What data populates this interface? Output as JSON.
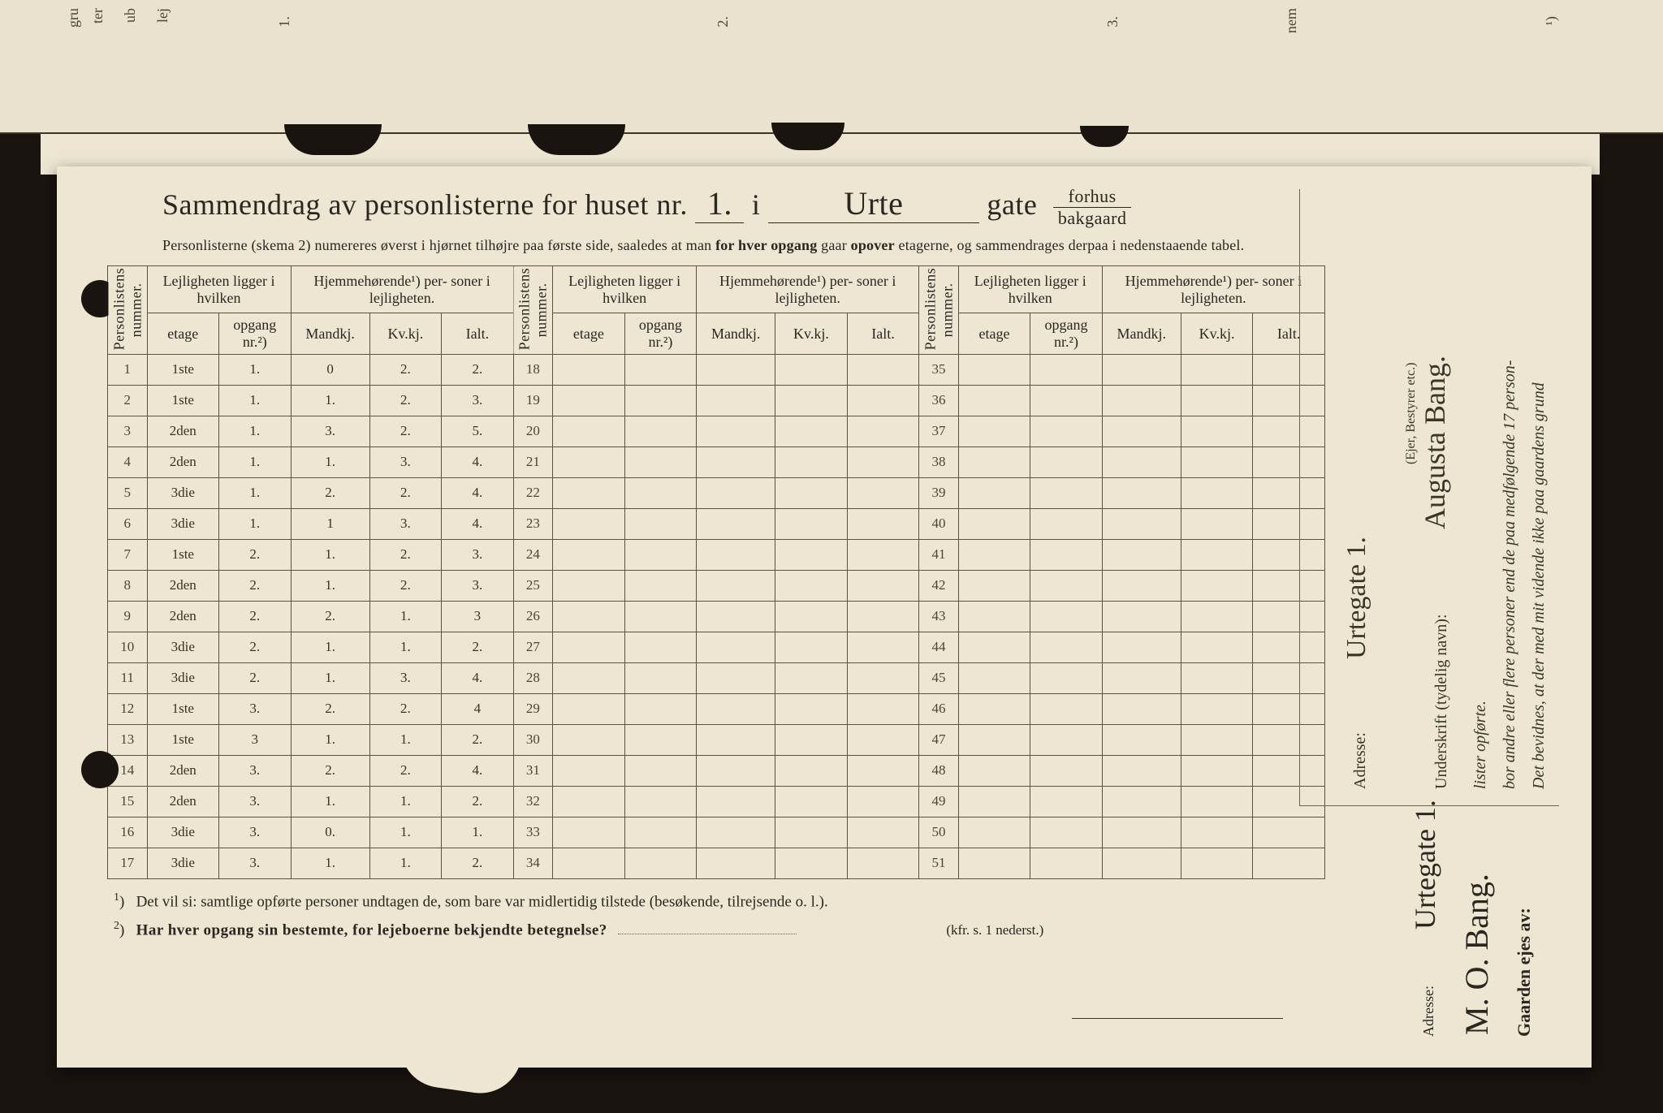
{
  "header": {
    "prefix": "Sammendrag av personlisterne for huset nr.",
    "house_nr": "1.",
    "i": "i",
    "street_hand": "Urte",
    "gate": "gate",
    "frac_top": "forhus",
    "frac_bot": "bakgaard",
    "subtitle_a": "Personlisterne (skema 2) numereres øverst i hjørnet tilhøjre paa første side, saaledes at man ",
    "subtitle_b": "for hver opgang",
    "subtitle_c": " gaar ",
    "subtitle_d": "opover",
    "subtitle_e": " etagerne, og sammendrages derpaa i nedenstaaende tabel."
  },
  "table_headers": {
    "personlistens": "Personlistens\nnummer.",
    "lejl": "Lejligheten\nligger i hvilken",
    "hjemme": "Hjemmehørende¹) per-\nsoner i lejligheten.",
    "etage": "etage",
    "opgang": "opgang\nnr.²)",
    "mandkj": "Mandkj.",
    "kvkj": "Kv.kj.",
    "ialt": "Ialt."
  },
  "rows": [
    {
      "n": "1",
      "etage": "1ste",
      "opg": "1.",
      "m": "0",
      "k": "2.",
      "i": "2."
    },
    {
      "n": "2",
      "etage": "1ste",
      "opg": "1.",
      "m": "1.",
      "k": "2.",
      "i": "3."
    },
    {
      "n": "3",
      "etage": "2den",
      "opg": "1.",
      "m": "3.",
      "k": "2.",
      "i": "5."
    },
    {
      "n": "4",
      "etage": "2den",
      "opg": "1.",
      "m": "1.",
      "k": "3.",
      "i": "4."
    },
    {
      "n": "5",
      "etage": "3die",
      "opg": "1.",
      "m": "2.",
      "k": "2.",
      "i": "4."
    },
    {
      "n": "6",
      "etage": "3die",
      "opg": "1.",
      "m": "1",
      "k": "3.",
      "i": "4."
    },
    {
      "n": "7",
      "etage": "1ste",
      "opg": "2.",
      "m": "1.",
      "k": "2.",
      "i": "3."
    },
    {
      "n": "8",
      "etage": "2den",
      "opg": "2.",
      "m": "1.",
      "k": "2.",
      "i": "3."
    },
    {
      "n": "9",
      "etage": "2den",
      "opg": "2.",
      "m": "2.",
      "k": "1.",
      "i": "3"
    },
    {
      "n": "10",
      "etage": "3die",
      "opg": "2.",
      "m": "1.",
      "k": "1.",
      "i": "2."
    },
    {
      "n": "11",
      "etage": "3die",
      "opg": "2.",
      "m": "1.",
      "k": "3.",
      "i": "4."
    },
    {
      "n": "12",
      "etage": "1ste",
      "opg": "3.",
      "m": "2.",
      "k": "2.",
      "i": "4"
    },
    {
      "n": "13",
      "etage": "1ste",
      "opg": "3",
      "m": "1.",
      "k": "1.",
      "i": "2."
    },
    {
      "n": "14",
      "etage": "2den",
      "opg": "3.",
      "m": "2.",
      "k": "2.",
      "i": "4."
    },
    {
      "n": "15",
      "etage": "2den",
      "opg": "3.",
      "m": "1.",
      "k": "1.",
      "i": "2."
    },
    {
      "n": "16",
      "etage": "3die",
      "opg": "3.",
      "m": "0.",
      "k": "1.",
      "i": "1."
    },
    {
      "n": "17",
      "etage": "3die",
      "opg": "3.",
      "m": "1.",
      "k": "1.",
      "i": "2."
    }
  ],
  "mid_nums": [
    "18",
    "19",
    "20",
    "21",
    "22",
    "23",
    "24",
    "25",
    "26",
    "27",
    "28",
    "29",
    "30",
    "31",
    "32",
    "33",
    "34"
  ],
  "right_nums": [
    "35",
    "36",
    "37",
    "38",
    "39",
    "40",
    "41",
    "42",
    "43",
    "44",
    "45",
    "46",
    "47",
    "48",
    "49",
    "50",
    "51"
  ],
  "footnotes": {
    "f1": "Det vil si: samtlige opførte personer undtagen de, som bare var midlertidig tilstede (besøkende, tilrejsende o. l.).",
    "f2": "Har hver opgang sin bestemte, for lejeboerne bekjendte betegnelse?",
    "kfr": "(kfr. s. 1 nederst.)"
  },
  "side": {
    "line1": "Det bevidnes, at der med mit vidende ikke paa gaardens grund",
    "line2": "bor andre eller flere personer end de paa medfølgende 17 person-",
    "line3": "lister opførte.",
    "sig_label": "Underskrift (tydelig navn):",
    "sig_val": "Augusta Bang.",
    "ejer": "(Ejer, Bestyrer etc.)",
    "addr_label": "Adresse:",
    "addr_val": "Urtegate 1."
  },
  "owner": {
    "label": "Gaarden ejes av:",
    "val": "M. O. Bang.",
    "addr_label": "Adresse:",
    "addr_val": "Urtegate 1."
  },
  "colors": {
    "paper": "#ece6d2",
    "ink": "#2a2620",
    "rule": "#5a523e",
    "bg": "#1a1410"
  }
}
